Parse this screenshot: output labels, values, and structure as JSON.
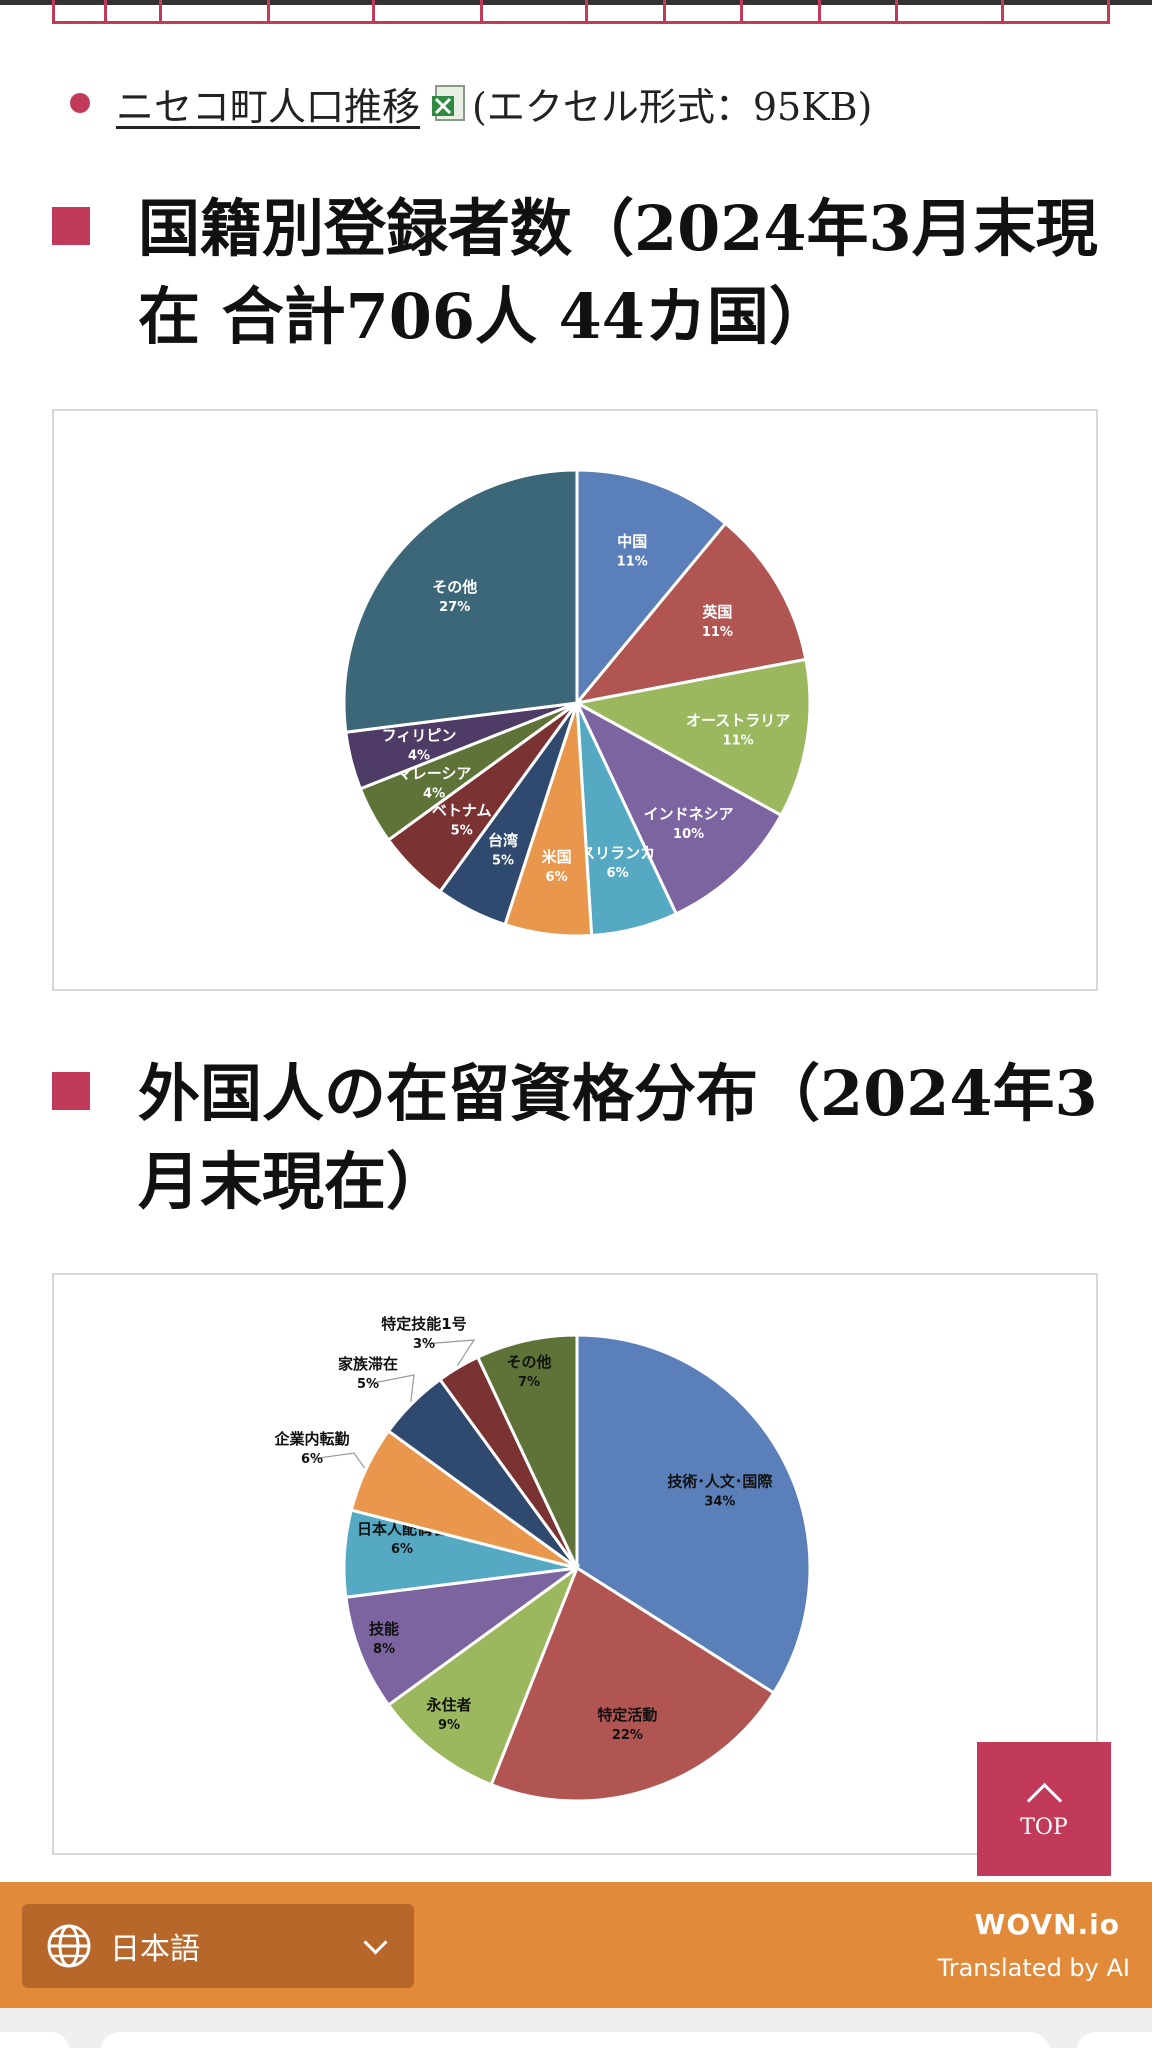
{
  "download": {
    "link_text": "ニセコ町人口推移",
    "format_note": "(エクセル形式：95KB)",
    "icon": "excel-file-icon"
  },
  "sections": [
    {
      "heading": "国籍別登録者数（2024年3月末現在 合計706人 44カ国）"
    },
    {
      "heading": "外国人の在留資格分布（2024年3月末現在）"
    }
  ],
  "chart_data": [
    {
      "type": "pie",
      "title": "",
      "labels": [
        "中国",
        "英国",
        "オーストラリア",
        "インドネシア",
        "スリランカ",
        "米国",
        "台湾",
        "ベトナム",
        "マレーシア",
        "フィリピン",
        "その他"
      ],
      "values": [
        11,
        11,
        11,
        10,
        6,
        6,
        5,
        5,
        4,
        4,
        27
      ],
      "value_labels": [
        "11%",
        "11%",
        "11%",
        "10%",
        "6%",
        "6%",
        "5%",
        "5%",
        "4%",
        "4%",
        "27%"
      ],
      "colors": [
        "#5b7fb8",
        "#b05552",
        "#9bb85f",
        "#7b64a0",
        "#55a9c2",
        "#e8974d",
        "#2f4a6e",
        "#7a3332",
        "#5f7338",
        "#4e3b66",
        "#3c6778"
      ],
      "label_color": "#ffffff"
    },
    {
      "type": "pie",
      "title": "",
      "labels": [
        "技術･人文･国際",
        "特定活動",
        "永住者",
        "技能",
        "日本人配偶者",
        "企業内転勤",
        "家族滞在",
        "特定技能1号",
        "その他"
      ],
      "values": [
        34,
        22,
        9,
        8,
        6,
        6,
        5,
        3,
        7
      ],
      "value_labels": [
        "34%",
        "22%",
        "9%",
        "8%",
        "6%",
        "6%",
        "5%",
        "3%",
        "7%"
      ],
      "colors": [
        "#5b7fb8",
        "#b05552",
        "#9bb85f",
        "#7b64a0",
        "#55a9c2",
        "#e8974d",
        "#2f4a6e",
        "#7a3332",
        "#5f7338"
      ],
      "label_color": "#111111"
    }
  ],
  "top_button": {
    "label": "TOP",
    "icon": "chevron-up-icon"
  },
  "language_bar": {
    "icon": "globe-icon",
    "selected_language": "日本語",
    "brand": "WOVN.io",
    "tagline": "Translated by AI"
  }
}
